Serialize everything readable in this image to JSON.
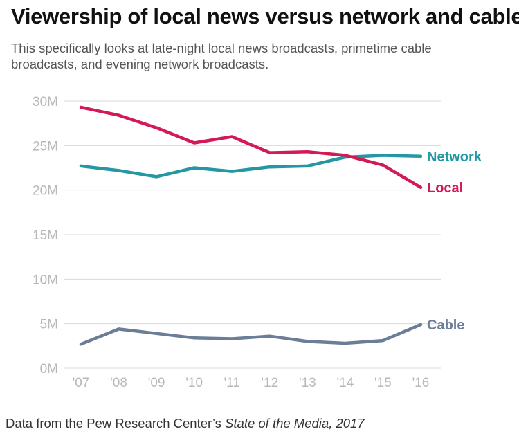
{
  "title": "Viewership of local news versus network and cable",
  "subtitle": "This specifically looks at late-night local news broadcasts, primetime cable broadcasts, and evening network broadcasts.",
  "source": {
    "prefix": "Data from the Pew Research Center’s ",
    "italic": "State of the Media, 2017"
  },
  "chart_data": {
    "type": "line",
    "title": "Viewership of local news versus network and cable",
    "xlabel": "",
    "ylabel": "",
    "categories": [
      "'07",
      "'08",
      "'09",
      "'10",
      "'11",
      "'12",
      "'13",
      "'14",
      "'15",
      "'16"
    ],
    "ylim": [
      0,
      30
    ],
    "yticks": [
      0,
      5,
      10,
      15,
      20,
      25,
      30
    ],
    "ytick_labels": [
      "0M",
      "5M",
      "10M",
      "15M",
      "20M",
      "25M",
      "30M"
    ],
    "grid": true,
    "series": [
      {
        "name": "Network",
        "color": "#2397a3",
        "values": [
          22.7,
          22.2,
          21.5,
          22.5,
          22.1,
          22.6,
          22.7,
          23.7,
          23.9,
          23.8
        ]
      },
      {
        "name": "Local",
        "color": "#d31a55",
        "values": [
          29.3,
          28.4,
          27.0,
          25.3,
          26.0,
          24.2,
          24.3,
          23.9,
          22.8,
          20.3
        ]
      },
      {
        "name": "Cable",
        "color": "#6b7d97",
        "values": [
          2.7,
          4.4,
          3.9,
          3.4,
          3.3,
          3.6,
          3.0,
          2.8,
          3.1,
          4.9
        ]
      }
    ]
  }
}
